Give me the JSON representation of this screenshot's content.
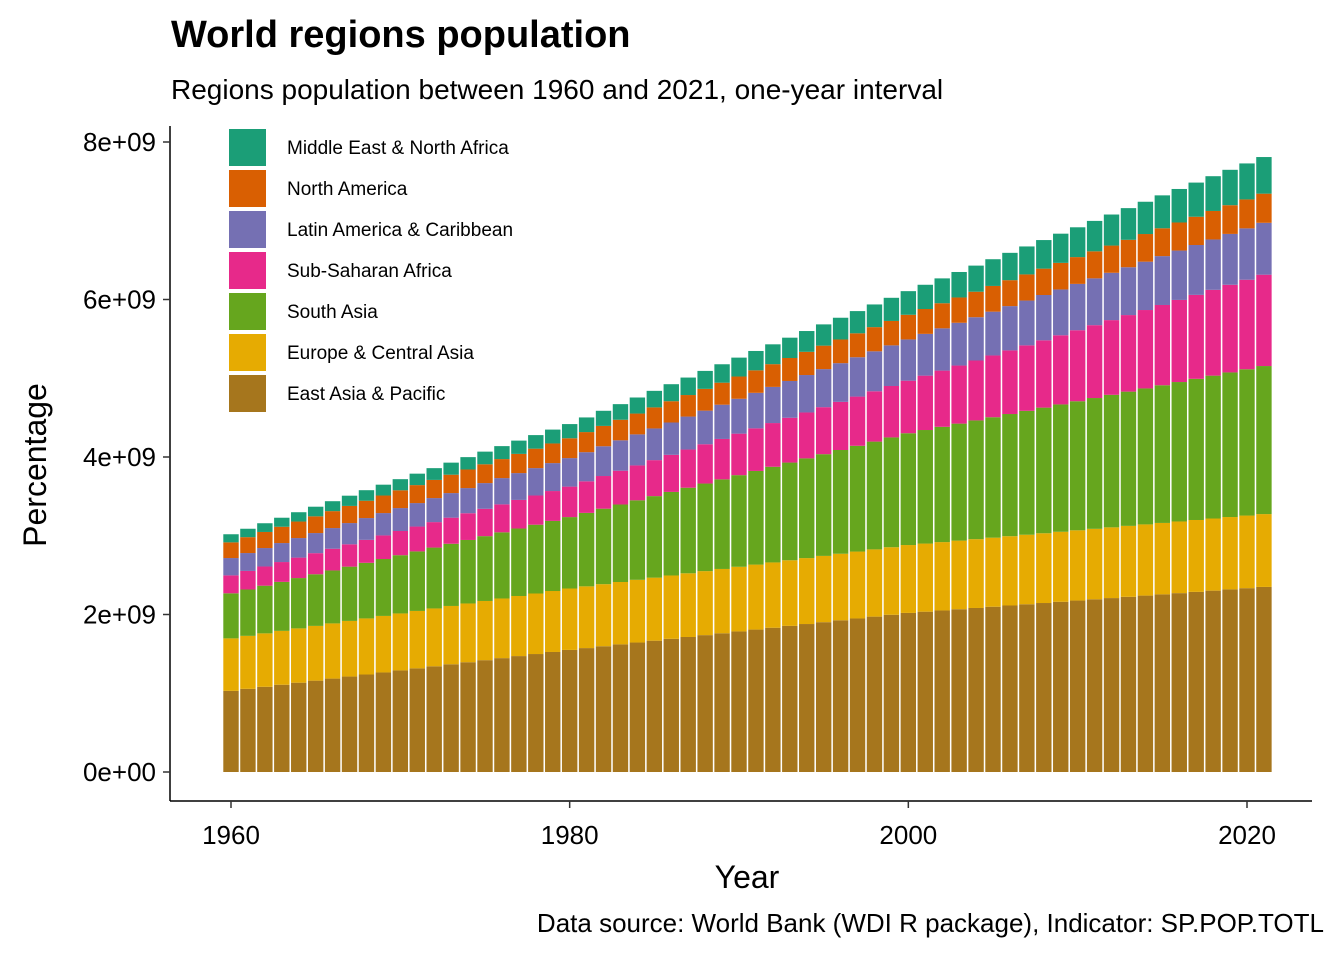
{
  "chart_data": {
    "type": "bar",
    "stacked": true,
    "title": "World regions population",
    "subtitle": "Regions population between 1960 and 2021, one-year interval",
    "caption": "Data source: World Bank (WDI R package), Indicator: SP.POP.TOTL",
    "xlabel": "Year",
    "ylabel": "Percentage",
    "x_start": 1960,
    "x_end": 2021,
    "xlim": [
      1960,
      2021
    ],
    "ylim": [
      0,
      8000000000
    ],
    "x_ticks": [
      1960,
      1980,
      2000,
      2020
    ],
    "x_tick_labels": [
      "1960",
      "1980",
      "2000",
      "2020"
    ],
    "y_ticks": [
      0,
      2000000000,
      4000000000,
      6000000000,
      8000000000
    ],
    "y_tick_labels": [
      "0e+00",
      "2e+09",
      "4e+09",
      "6e+09",
      "8e+09"
    ],
    "legend_position": "top-left",
    "series_order_bottom_to_top": [
      "East Asia & Pacific",
      "Europe & Central Asia",
      "South Asia",
      "Sub-Saharan Africa",
      "Latin America & Caribbean",
      "North America",
      "Middle East & North Africa"
    ],
    "series": [
      {
        "name": "Middle East & North Africa",
        "color": "#1B9E77",
        "keyframes": {
          "1960": 103000000,
          "1980": 180000000,
          "2000": 300000000,
          "2021": 465000000
        }
      },
      {
        "name": "North America",
        "color": "#D95F02",
        "keyframes": {
          "1960": 199000000,
          "1980": 252000000,
          "2000": 313000000,
          "2021": 370000000
        }
      },
      {
        "name": "Latin America & Caribbean",
        "color": "#7570B3",
        "keyframes": {
          "1960": 220000000,
          "1980": 362000000,
          "2000": 524000000,
          "2021": 659000000
        }
      },
      {
        "name": "Sub-Saharan Africa",
        "color": "#E7298A",
        "keyframes": {
          "1960": 228000000,
          "1980": 387000000,
          "2000": 667000000,
          "2021": 1160000000
        }
      },
      {
        "name": "South Asia",
        "color": "#66A61E",
        "keyframes": {
          "1960": 572000000,
          "1980": 907000000,
          "2000": 1420000000,
          "2021": 1880000000
        }
      },
      {
        "name": "Europe & Central Asia",
        "color": "#E6AB02",
        "keyframes": {
          "1960": 667000000,
          "1980": 780000000,
          "2000": 862000000,
          "2021": 925000000
        }
      },
      {
        "name": "East Asia & Pacific",
        "color": "#A6761D",
        "keyframes": {
          "1960": 1030000000,
          "1980": 1550000000,
          "2000": 2020000000,
          "2021": 2350000000
        }
      }
    ]
  }
}
